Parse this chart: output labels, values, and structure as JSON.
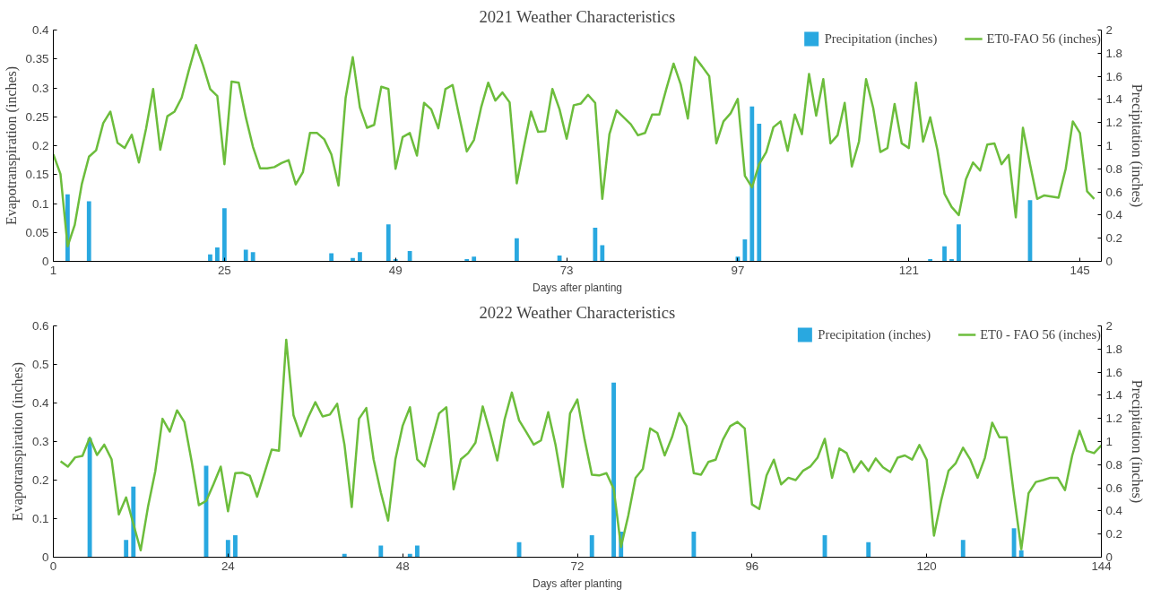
{
  "chart_data": [
    {
      "type": "line",
      "title": "2021 Weather Characteristics",
      "xlabel": "Days after planting",
      "ylabel": "Evapotranspiration (inches)",
      "y2label": "Precipitation (inches)",
      "xlim": [
        1,
        148
      ],
      "xticks": [
        1,
        25,
        49,
        73,
        97,
        121,
        145
      ],
      "ylim": [
        0,
        0.4
      ],
      "yticks": [
        0,
        0.05,
        0.1,
        0.15,
        0.2,
        0.25,
        0.3,
        0.35,
        0.4
      ],
      "y2lim": [
        0,
        2
      ],
      "y2ticks": [
        0,
        0.2,
        0.4,
        0.6,
        0.8,
        1,
        1.2,
        1.4,
        1.6,
        1.8,
        2
      ],
      "legend": "top right",
      "series": [
        {
          "name": "Precipitation (inches)",
          "type": "bar",
          "axis": "y2",
          "color": "#29a8e0",
          "x": [
            3,
            6,
            23,
            24,
            25,
            28,
            29,
            40,
            43,
            44,
            48,
            49,
            51,
            59,
            60,
            66,
            72,
            77,
            78,
            97,
            98,
            99,
            100,
            124,
            126,
            127,
            128,
            138
          ],
          "values": [
            0.58,
            0.52,
            0.06,
            0.12,
            0.46,
            0.1,
            0.08,
            0.07,
            0.03,
            0.08,
            0.32,
            0.02,
            0.09,
            0.02,
            0.04,
            0.2,
            0.05,
            0.29,
            0.14,
            0.04,
            0.19,
            1.34,
            1.19,
            0.02,
            0.13,
            0.02,
            0.32,
            0.53
          ]
        },
        {
          "name": "ET0-FAO 56 (inches)",
          "color": "#6cbd3c",
          "x": [
            1,
            2,
            3,
            4,
            5,
            6,
            7,
            8,
            9,
            10,
            11,
            12,
            13,
            14,
            15,
            16,
            17,
            18,
            19,
            20,
            21,
            22,
            23,
            24,
            25,
            26,
            27,
            28,
            29,
            30,
            31,
            32,
            33,
            34,
            35,
            36,
            37,
            38,
            39,
            40,
            41,
            42,
            43,
            44,
            45,
            46,
            47,
            48,
            49,
            50,
            51,
            52,
            53,
            54,
            55,
            56,
            57,
            58,
            59,
            60,
            61,
            62,
            63,
            64,
            65,
            66,
            67,
            68,
            69,
            70,
            71,
            72,
            73,
            74,
            75,
            76,
            77,
            78,
            79,
            80,
            82,
            83,
            84,
            85,
            86,
            87,
            88,
            89,
            90,
            91,
            92,
            93,
            94,
            95,
            96,
            97,
            98,
            99,
            100,
            101,
            102,
            103,
            104,
            105,
            106,
            107,
            108,
            109,
            110,
            111,
            112,
            113,
            114,
            115,
            116,
            117,
            118,
            119,
            120,
            121,
            122,
            123,
            124,
            125,
            126,
            127,
            128,
            129,
            130,
            131,
            132,
            133,
            134,
            135,
            136,
            137,
            138,
            139,
            140,
            141,
            142,
            143,
            144,
            145,
            146,
            147
          ],
          "values": [
            0.185,
            0.151,
            0.026,
            0.063,
            0.134,
            0.181,
            0.192,
            0.239,
            0.259,
            0.205,
            0.196,
            0.219,
            0.171,
            0.229,
            0.298,
            0.193,
            0.251,
            0.259,
            0.283,
            0.33,
            0.374,
            0.339,
            0.298,
            0.286,
            0.168,
            0.311,
            0.309,
            0.249,
            0.198,
            0.161,
            0.161,
            0.163,
            0.17,
            0.175,
            0.133,
            0.154,
            0.222,
            0.222,
            0.211,
            0.185,
            0.131,
            0.283,
            0.353,
            0.266,
            0.231,
            0.236,
            0.302,
            0.298,
            0.16,
            0.215,
            0.222,
            0.183,
            0.274,
            0.263,
            0.23,
            0.298,
            0.305,
            0.247,
            0.19,
            0.21,
            0.266,
            0.309,
            0.278,
            0.292,
            0.275,
            0.135,
            0.198,
            0.259,
            0.224,
            0.225,
            0.298,
            0.263,
            0.212,
            0.27,
            0.273,
            0.288,
            0.274,
            0.108,
            0.22,
            0.261,
            0.237,
            0.218,
            0.222,
            0.254,
            0.254,
            0.299,
            0.342,
            0.306,
            0.247,
            0.353,
            0.337,
            0.32,
            0.204,
            0.242,
            0.256,
            0.281,
            0.148,
            0.128,
            0.168,
            0.189,
            0.232,
            0.242,
            0.191,
            0.254,
            0.22,
            0.324,
            0.252,
            0.315,
            0.204,
            0.218,
            0.274,
            0.164,
            0.207,
            0.315,
            0.265,
            0.189,
            0.196,
            0.272,
            0.204,
            0.196,
            0.309,
            0.207,
            0.249,
            0.193,
            0.117,
            0.094,
            0.08,
            0.142,
            0.171,
            0.157,
            0.202,
            0.204,
            0.168,
            0.184,
            0.076,
            0.231,
            0.168,
            0.108,
            0.114,
            0.112,
            0.11,
            0.16,
            0.242,
            0.222,
            0.121,
            0.108
          ]
        }
      ]
    },
    {
      "type": "line",
      "title": "2022 Weather Characteristics",
      "xlabel": "Days after planting",
      "ylabel": "Evapotranspiration (inches)",
      "y2label": "Precipitation (inches)",
      "xlim": [
        0,
        144
      ],
      "xticks": [
        0,
        24,
        48,
        72,
        96,
        120,
        144
      ],
      "ylim": [
        0,
        0.6
      ],
      "yticks": [
        0,
        0.1,
        0.2,
        0.3,
        0.4,
        0.5,
        0.6
      ],
      "y2lim": [
        0,
        2
      ],
      "y2ticks": [
        0,
        0.2,
        0.4,
        0.6,
        0.8,
        1,
        1.2,
        1.4,
        1.6,
        1.8,
        2
      ],
      "legend": "top right",
      "series": [
        {
          "name": "Precipitation (inches)",
          "type": "bar",
          "axis": "y2",
          "color": "#29a8e0",
          "x": [
            5,
            10,
            11,
            21,
            24,
            25,
            40,
            45,
            49,
            50,
            64,
            74,
            77,
            78,
            88,
            106,
            112,
            125,
            132,
            133
          ],
          "values": [
            1.03,
            0.15,
            0.61,
            0.79,
            0.15,
            0.19,
            0.03,
            0.1,
            0.03,
            0.1,
            0.13,
            0.19,
            1.51,
            0.22,
            0.22,
            0.19,
            0.13,
            0.15,
            0.25,
            0.06
          ]
        },
        {
          "name": "ET0 - FAO 56 (inches)",
          "color": "#6cbd3c",
          "x": [
            1,
            2,
            3,
            4,
            5,
            6,
            7,
            8,
            9,
            10,
            11,
            12,
            13,
            14,
            15,
            16,
            17,
            18,
            19,
            20,
            21,
            22,
            23,
            24,
            25,
            26,
            27,
            28,
            29,
            30,
            31,
            32,
            33,
            34,
            35,
            36,
            37,
            38,
            39,
            40,
            41,
            42,
            43,
            44,
            45,
            46,
            47,
            48,
            49,
            50,
            51,
            52,
            53,
            54,
            55,
            56,
            57,
            58,
            59,
            60,
            61,
            62,
            63,
            64,
            65,
            66,
            67,
            68,
            69,
            70,
            71,
            72,
            73,
            74,
            75,
            76,
            77,
            78,
            79,
            80,
            81,
            82,
            83,
            84,
            85,
            86,
            87,
            88,
            89,
            90,
            91,
            92,
            93,
            94,
            95,
            96,
            97,
            98,
            99,
            100,
            101,
            102,
            103,
            104,
            105,
            106,
            107,
            108,
            109,
            110,
            111,
            112,
            113,
            114,
            115,
            116,
            117,
            118,
            119,
            120,
            121,
            122,
            123,
            124,
            125,
            126,
            127,
            128,
            129,
            130,
            131,
            132,
            133,
            134,
            135,
            136,
            137,
            138,
            139,
            140,
            141,
            142,
            143,
            144
          ],
          "values": [
            0.249,
            0.235,
            0.259,
            0.263,
            0.31,
            0.265,
            0.292,
            0.254,
            0.111,
            0.155,
            0.086,
            0.018,
            0.13,
            0.222,
            0.359,
            0.326,
            0.381,
            0.351,
            0.249,
            0.135,
            0.146,
            0.189,
            0.235,
            0.119,
            0.218,
            0.219,
            0.211,
            0.157,
            0.218,
            0.279,
            0.276,
            0.564,
            0.368,
            0.314,
            0.362,
            0.402,
            0.365,
            0.37,
            0.398,
            0.292,
            0.13,
            0.359,
            0.387,
            0.254,
            0.168,
            0.095,
            0.254,
            0.341,
            0.389,
            0.254,
            0.235,
            0.303,
            0.373,
            0.389,
            0.176,
            0.254,
            0.27,
            0.297,
            0.391,
            0.324,
            0.251,
            0.357,
            0.427,
            0.355,
            0.324,
            0.292,
            0.303,
            0.376,
            0.292,
            0.182,
            0.373,
            0.409,
            0.305,
            0.214,
            0.212,
            0.218,
            0.177,
            0.027,
            0.108,
            0.206,
            0.229,
            0.334,
            0.322,
            0.264,
            0.311,
            0.374,
            0.34,
            0.218,
            0.214,
            0.247,
            0.253,
            0.305,
            0.34,
            0.351,
            0.334,
            0.137,
            0.125,
            0.212,
            0.253,
            0.189,
            0.206,
            0.2,
            0.224,
            0.235,
            0.258,
            0.307,
            0.206,
            0.282,
            0.27,
            0.221,
            0.249,
            0.224,
            0.256,
            0.233,
            0.221,
            0.258,
            0.264,
            0.253,
            0.291,
            0.253,
            0.056,
            0.148,
            0.224,
            0.244,
            0.284,
            0.253,
            0.206,
            0.258,
            0.349,
            0.311,
            0.311,
            0.16,
            0.021,
            0.166,
            0.195,
            0.2,
            0.206,
            0.206,
            0.174,
            0.264,
            0.328,
            0.276,
            0.27,
            0.29
          ]
        }
      ]
    }
  ]
}
